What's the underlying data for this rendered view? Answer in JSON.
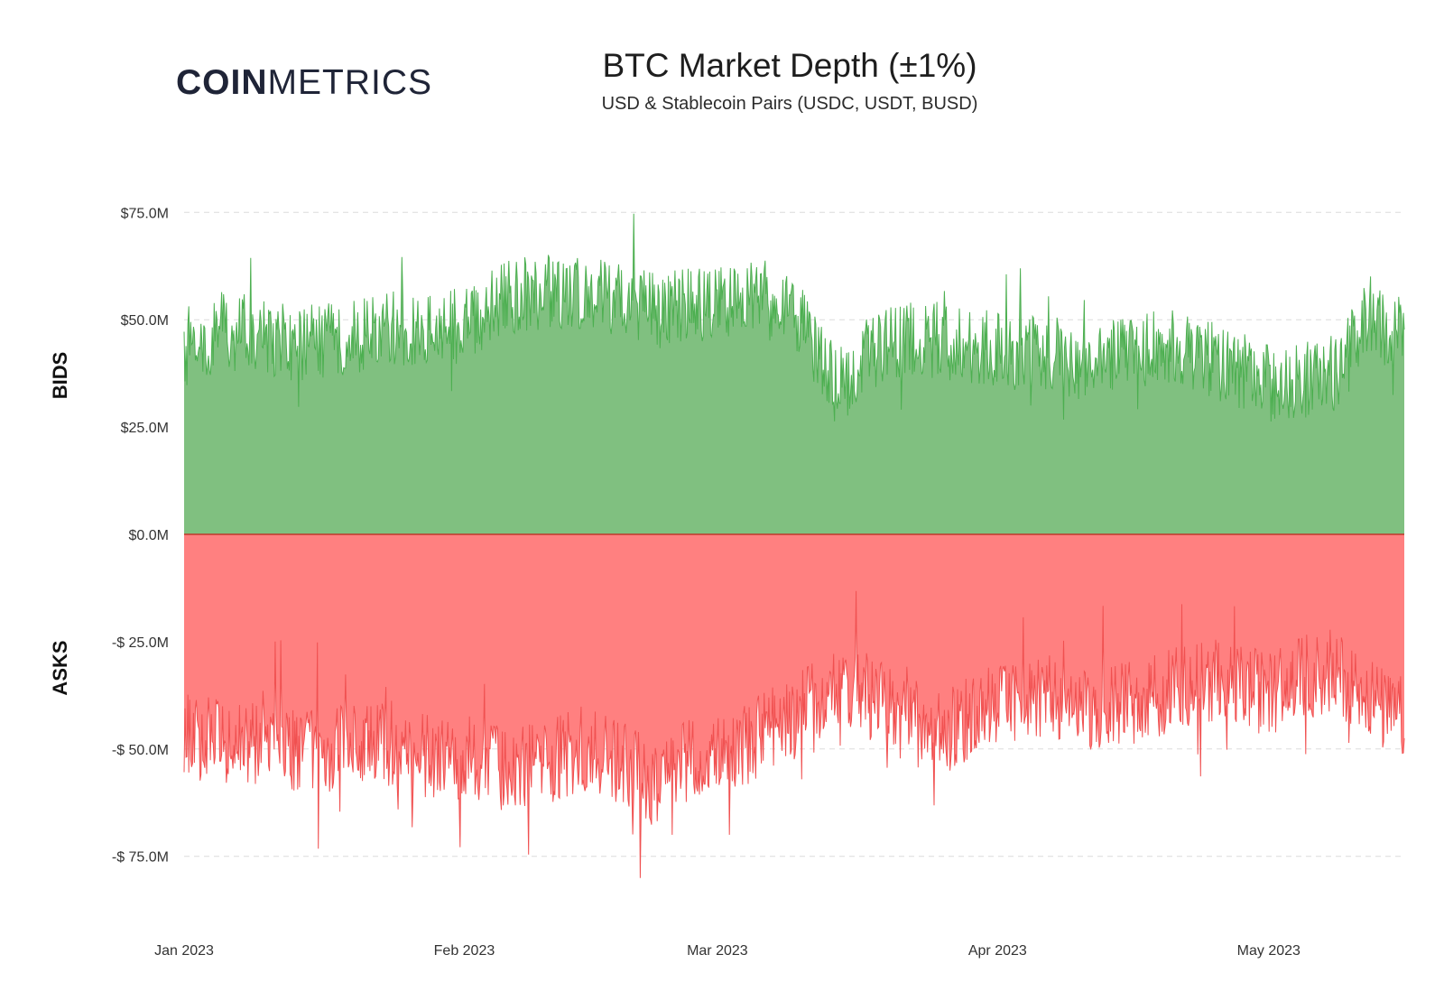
{
  "brand": {
    "logo_bold": "COIN",
    "logo_light": "METRICS"
  },
  "chart_data": {
    "type": "area",
    "title": "BTC Market Depth (±1%)",
    "subtitle": "USD & Stablecoin Pairs (USDC, USDT, BUSD)",
    "y_side_labels": {
      "top": "BIDS",
      "bottom": "ASKS"
    },
    "ylim": [
      -85,
      90
    ],
    "y_ticks": [
      {
        "value": 75,
        "label": "$75.0M"
      },
      {
        "value": 50,
        "label": "$50.0M"
      },
      {
        "value": 25,
        "label": "$25.0M"
      },
      {
        "value": 0,
        "label": "$0.0M"
      },
      {
        "value": -25,
        "label": "-$ 25.0M"
      },
      {
        "value": -50,
        "label": "-$ 50.0M"
      },
      {
        "value": -75,
        "label": "-$ 75.0M"
      }
    ],
    "x_range": [
      "2023-01-01",
      "2023-05-16"
    ],
    "x_ticks": [
      {
        "date": "2023-01-01",
        "label": "Jan 2023"
      },
      {
        "date": "2023-02-01",
        "label": "Feb 2023"
      },
      {
        "date": "2023-03-01",
        "label": "Mar 2023"
      },
      {
        "date": "2023-04-01",
        "label": "Apr 2023"
      },
      {
        "date": "2023-05-01",
        "label": "May 2023"
      }
    ],
    "grid": true,
    "series": [
      {
        "name": "BIDS",
        "color": "#4caf50",
        "fill": "#80c080",
        "x": [
          "2023-01-01",
          "2023-01-05",
          "2023-01-09",
          "2023-01-13",
          "2023-01-17",
          "2023-01-21",
          "2023-01-25",
          "2023-01-29",
          "2023-02-02",
          "2023-02-06",
          "2023-02-10",
          "2023-02-14",
          "2023-02-18",
          "2023-02-22",
          "2023-02-26",
          "2023-03-02",
          "2023-03-06",
          "2023-03-10",
          "2023-03-14",
          "2023-03-18",
          "2023-03-22",
          "2023-03-26",
          "2023-03-30",
          "2023-04-03",
          "2023-04-07",
          "2023-04-11",
          "2023-04-15",
          "2023-04-19",
          "2023-04-23",
          "2023-04-27",
          "2023-05-01",
          "2023-05-05",
          "2023-05-09",
          "2023-05-12",
          "2023-05-14",
          "2023-05-16"
        ],
        "values": [
          41,
          48,
          47,
          44,
          45,
          47,
          48,
          47,
          50,
          55,
          57,
          56,
          54,
          53,
          53,
          54,
          55,
          50,
          35,
          42,
          46,
          45,
          44,
          42,
          42,
          40,
          42,
          44,
          42,
          39,
          35,
          36,
          38,
          52,
          48,
          47
        ],
        "spike_amplitude": 9
      },
      {
        "name": "ASKS",
        "color": "#f05050",
        "fill": "#ff8080",
        "x": [
          "2023-01-01",
          "2023-01-05",
          "2023-01-09",
          "2023-01-13",
          "2023-01-17",
          "2023-01-21",
          "2023-01-25",
          "2023-01-29",
          "2023-02-02",
          "2023-02-06",
          "2023-02-10",
          "2023-02-14",
          "2023-02-18",
          "2023-02-22",
          "2023-02-26",
          "2023-03-02",
          "2023-03-06",
          "2023-03-10",
          "2023-03-14",
          "2023-03-18",
          "2023-03-22",
          "2023-03-26",
          "2023-03-30",
          "2023-04-03",
          "2023-04-07",
          "2023-04-11",
          "2023-04-15",
          "2023-04-19",
          "2023-04-23",
          "2023-04-27",
          "2023-05-01",
          "2023-05-05",
          "2023-05-09",
          "2023-05-12",
          "2023-05-14",
          "2023-05-16"
        ],
        "values": [
          -47,
          -48,
          -49,
          -50,
          -51,
          -48,
          -49,
          -53,
          -52,
          -55,
          -53,
          -50,
          -53,
          -58,
          -52,
          -50,
          -47,
          -42,
          -35,
          -38,
          -44,
          -46,
          -42,
          -38,
          -38,
          -40,
          -40,
          -37,
          -34,
          -35,
          -37,
          -33,
          -33,
          -37,
          -42,
          -43
        ],
        "spike_amplitude": 10
      }
    ]
  }
}
